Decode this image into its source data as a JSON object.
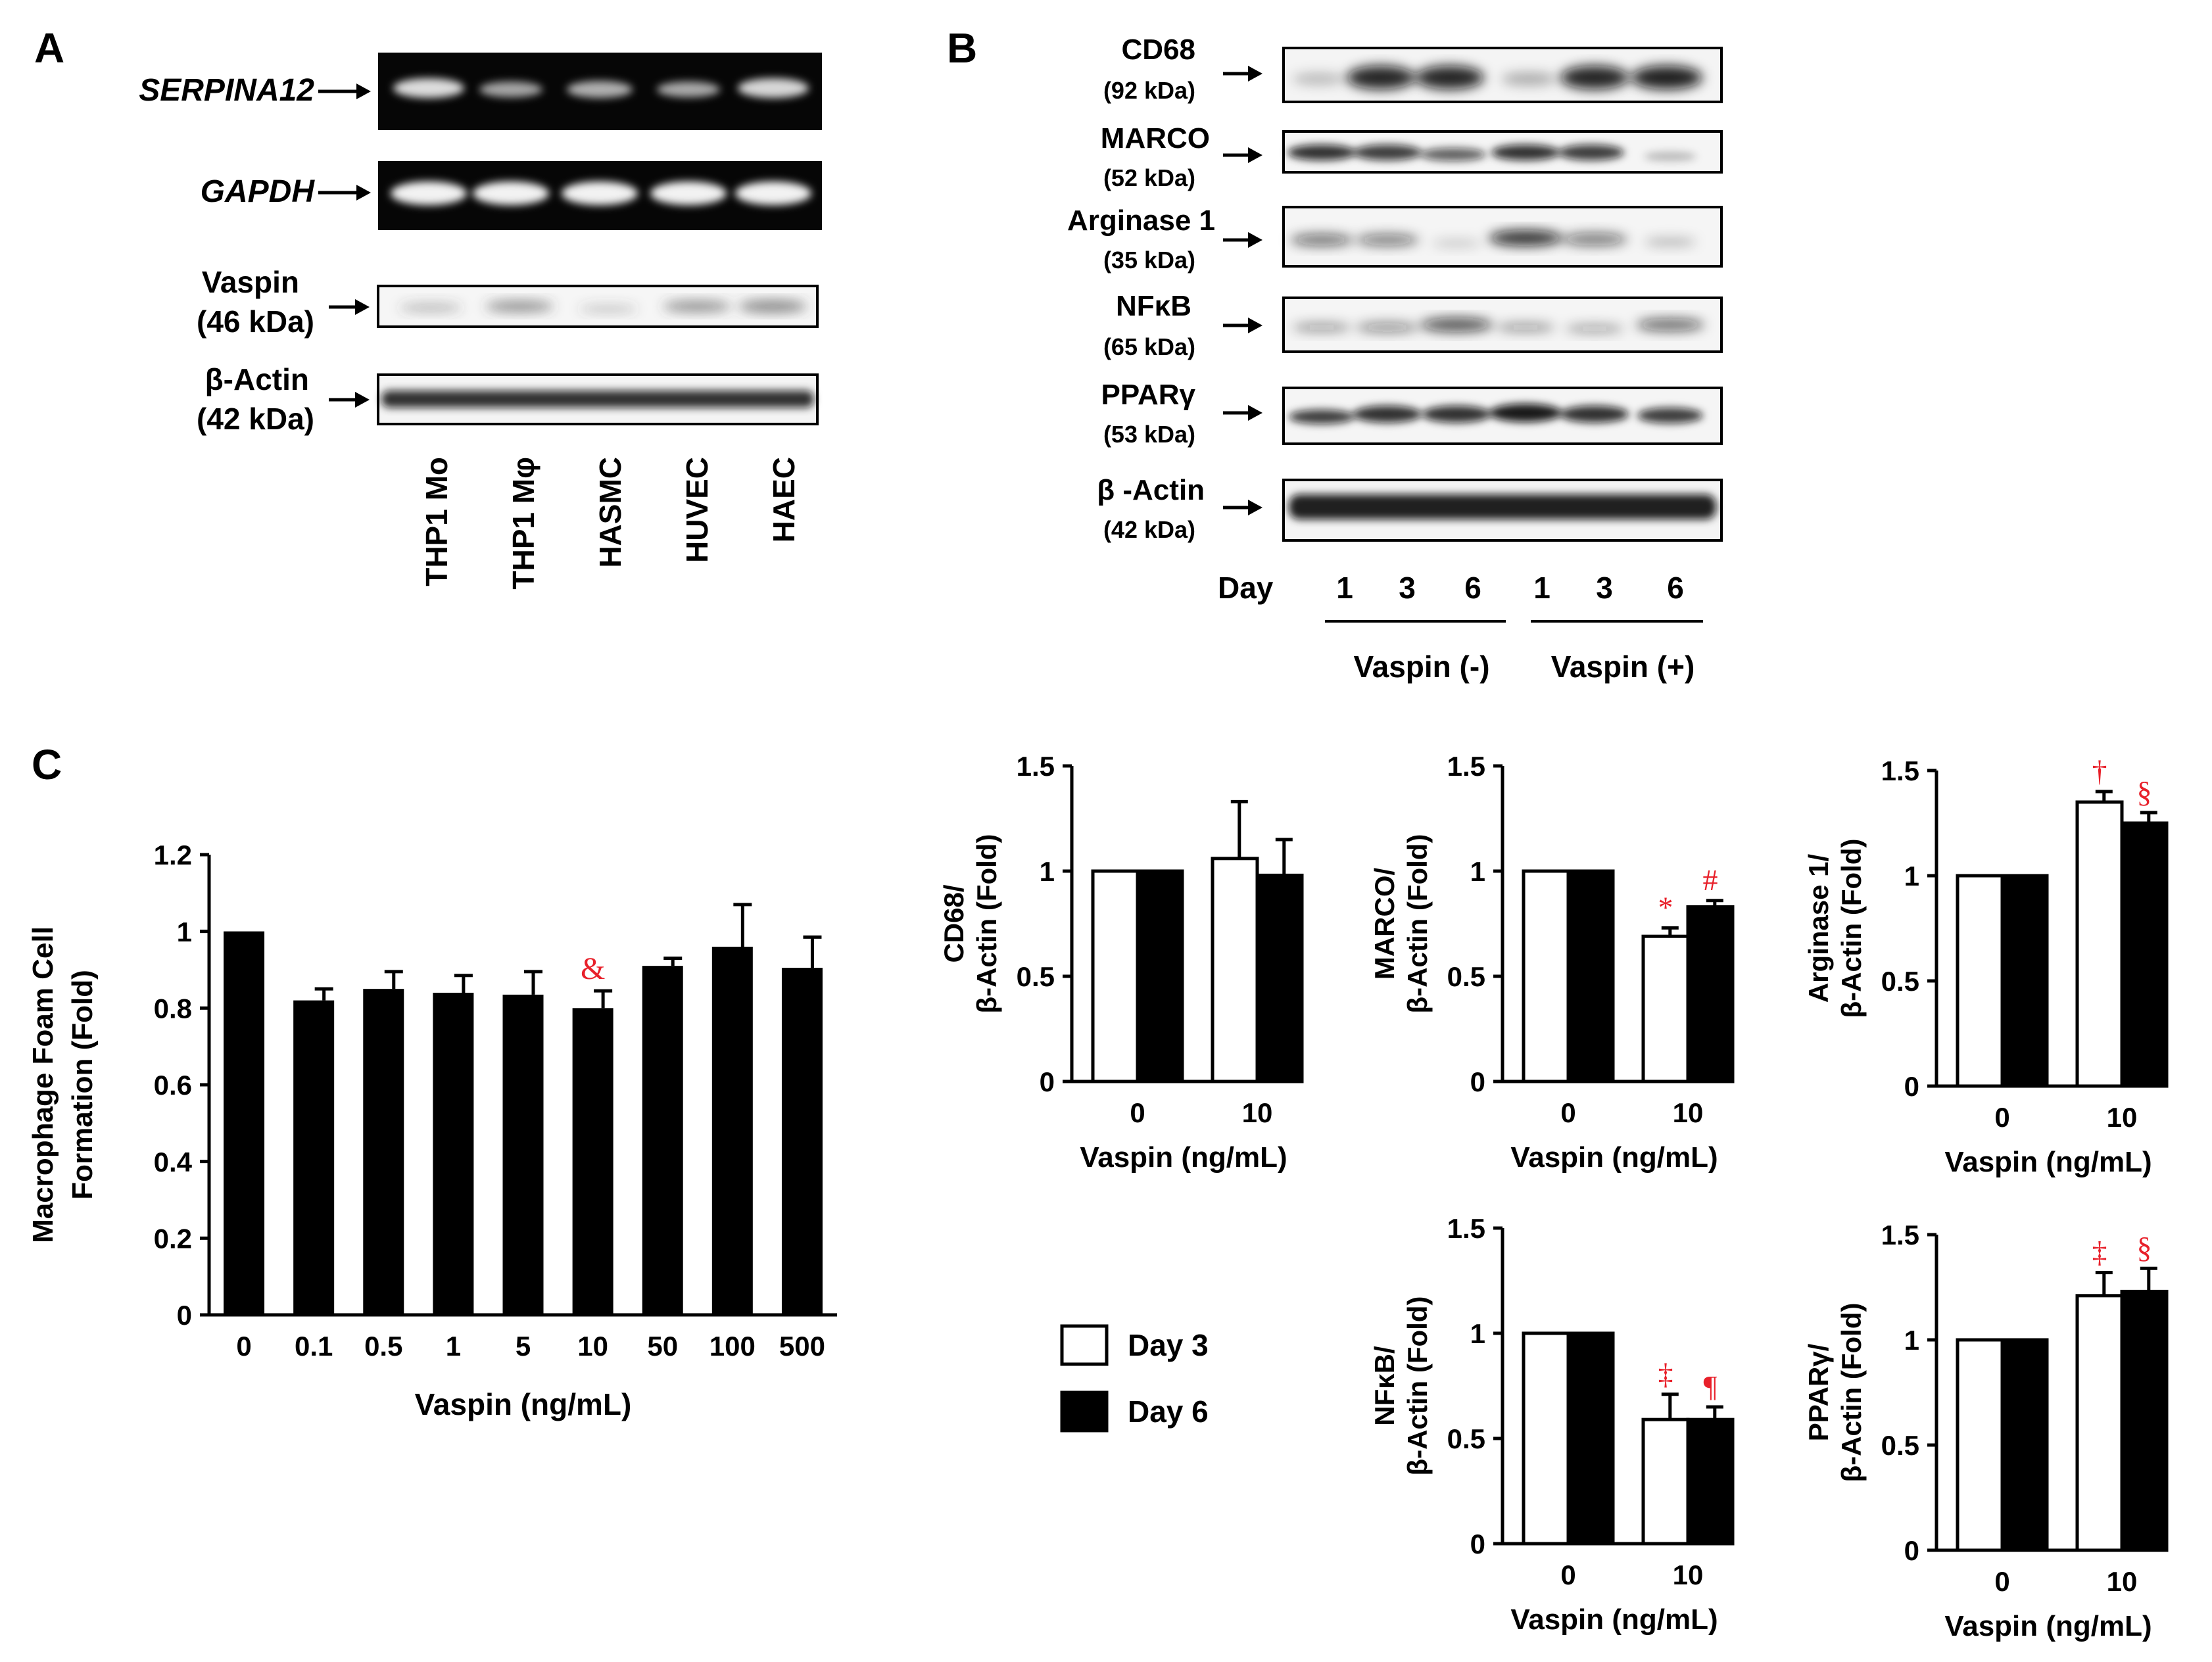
{
  "panel_labels": {
    "a": "A",
    "b": "B",
    "c": "C"
  },
  "panel_a": {
    "gel_labels": [
      "SERPINA12",
      "GAPDH"
    ],
    "wb_labels": [
      {
        "name": "Vaspin",
        "kda": "(46 kDa)"
      },
      {
        "name": "β-Actin",
        "kda": "(42 kDa)"
      }
    ],
    "lanes": [
      "THP1 Mo",
      "THP1 Mφ",
      "HASMC",
      "HUVEC",
      "HAEC"
    ]
  },
  "panel_b": {
    "blots": [
      {
        "name": "CD68",
        "kda": "(92 kDa)"
      },
      {
        "name": "MARCO",
        "kda": "(52 kDa)"
      },
      {
        "name": "Arginase 1",
        "kda": "(35 kDa)"
      },
      {
        "name": "NFκB",
        "kda": "(65 kDa)"
      },
      {
        "name": "PPARγ",
        "kda": "(53 kDa)"
      },
      {
        "name": "β -Actin",
        "kda": "(42 kDa)"
      }
    ],
    "day_label": "Day",
    "days": [
      "1",
      "3",
      "6",
      "1",
      "3",
      "6"
    ],
    "groups": [
      "Vaspin (-)",
      "Vaspin (+)"
    ]
  },
  "colors": {
    "significance": "#e8202a",
    "bar_day3": "#ffffff",
    "bar_day6": "#000000"
  },
  "legend": {
    "items": [
      "Day 3",
      "Day 6"
    ]
  },
  "chart_data": [
    {
      "type": "bar",
      "ylabel": "Macrophage Foam Cell Formation (Fold)",
      "xlabel": "Vaspin (ng/mL)",
      "categories": [
        "0",
        "0.1",
        "0.5",
        "1",
        "5",
        "10",
        "50",
        "100",
        "500"
      ],
      "values": [
        1.0,
        0.82,
        0.85,
        0.84,
        0.835,
        0.8,
        0.91,
        0.96,
        0.905
      ],
      "errors": [
        0,
        0.03,
        0.045,
        0.045,
        0.06,
        0.045,
        0.02,
        0.11,
        0.08
      ],
      "annotations": [
        "",
        "",
        "",
        "",
        "",
        "&",
        "",
        "",
        ""
      ],
      "ylim": [
        0,
        1.2
      ],
      "yticks": [
        "0",
        "0.2",
        "0.4",
        "0.6",
        "0.8",
        "1",
        "1.2"
      ]
    },
    {
      "type": "bar",
      "ylabel": "CD68/ β-Actin (Fold)",
      "xlabel": "Vaspin (ng/mL)",
      "categories": [
        "0",
        "10"
      ],
      "series": [
        {
          "name": "Day 3",
          "values": [
            1.0,
            1.06
          ],
          "errors": [
            0,
            0.27
          ],
          "annotations": [
            "",
            ""
          ]
        },
        {
          "name": "Day 6",
          "values": [
            1.0,
            0.98
          ],
          "errors": [
            0,
            0.17
          ],
          "annotations": [
            "",
            ""
          ]
        }
      ],
      "ylim": [
        0,
        1.5
      ],
      "yticks": [
        "0",
        "0.5",
        "1",
        "1.5"
      ]
    },
    {
      "type": "bar",
      "ylabel": "MARCO/ β-Actin (Fold)",
      "xlabel": "Vaspin (ng/mL)",
      "categories": [
        "0",
        "10"
      ],
      "series": [
        {
          "name": "Day 3",
          "values": [
            1.0,
            0.69
          ],
          "errors": [
            0,
            0.04
          ],
          "annotations": [
            "",
            "*"
          ]
        },
        {
          "name": "Day 6",
          "values": [
            1.0,
            0.83
          ],
          "errors": [
            0,
            0.03
          ],
          "annotations": [
            "",
            "#"
          ]
        }
      ],
      "ylim": [
        0,
        1.5
      ],
      "yticks": [
        "0",
        "0.5",
        "1",
        "1.5"
      ]
    },
    {
      "type": "bar",
      "ylabel": "Arginase 1/ β-Actin (Fold)",
      "xlabel": "Vaspin (ng/mL)",
      "categories": [
        "0",
        "10"
      ],
      "series": [
        {
          "name": "Day 3",
          "values": [
            1.0,
            1.35
          ],
          "errors": [
            0,
            0.05
          ],
          "annotations": [
            "",
            "†"
          ]
        },
        {
          "name": "Day 6",
          "values": [
            1.0,
            1.25
          ],
          "errors": [
            0,
            0.05
          ],
          "annotations": [
            "",
            "§"
          ]
        }
      ],
      "ylim": [
        0,
        1.5
      ],
      "yticks": [
        "0",
        "0.5",
        "1",
        "1.5"
      ]
    },
    {
      "type": "bar",
      "ylabel": "NFκB/ β-Actin (Fold)",
      "xlabel": "Vaspin (ng/mL)",
      "categories": [
        "0",
        "10"
      ],
      "series": [
        {
          "name": "Day 3",
          "values": [
            1.0,
            0.59
          ],
          "errors": [
            0,
            0.12
          ],
          "annotations": [
            "",
            "‡"
          ]
        },
        {
          "name": "Day 6",
          "values": [
            1.0,
            0.59
          ],
          "errors": [
            0,
            0.06
          ],
          "annotations": [
            "",
            "¶"
          ]
        }
      ],
      "ylim": [
        0,
        1.5
      ],
      "yticks": [
        "0",
        "0.5",
        "1",
        "1.5"
      ]
    },
    {
      "type": "bar",
      "ylabel": "PPARγ/ β-Actin (Fold)",
      "xlabel": "Vaspin (ng/mL)",
      "categories": [
        "0",
        "10"
      ],
      "series": [
        {
          "name": "Day 3",
          "values": [
            1.0,
            1.21
          ],
          "errors": [
            0,
            0.11
          ],
          "annotations": [
            "",
            "‡"
          ]
        },
        {
          "name": "Day 6",
          "values": [
            1.0,
            1.23
          ],
          "errors": [
            0,
            0.11
          ],
          "annotations": [
            "",
            "§"
          ]
        }
      ],
      "ylim": [
        0,
        1.5
      ],
      "yticks": [
        "0",
        "0.5",
        "1",
        "1.5"
      ]
    }
  ]
}
